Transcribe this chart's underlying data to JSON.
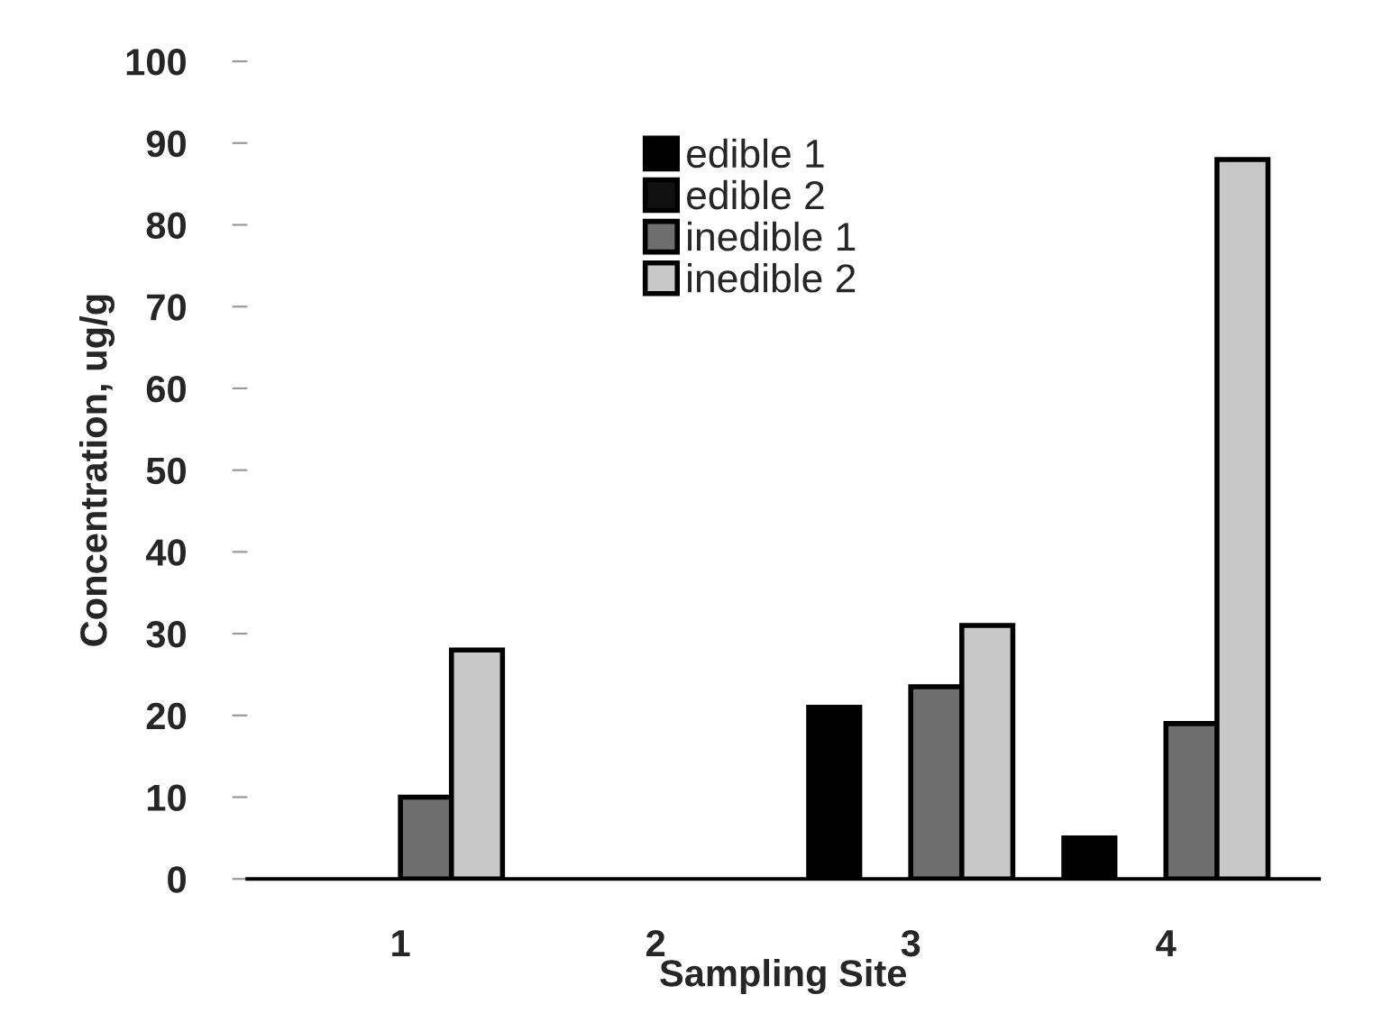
{
  "chart_data": {
    "type": "bar",
    "xlabel": "Sampling Site",
    "ylabel": "Concentration, ug/g",
    "categories": [
      "1",
      "2",
      "3",
      "4"
    ],
    "series": [
      {
        "name": "edible 1",
        "color": "#000000",
        "values": [
          null,
          null,
          21,
          5
        ]
      },
      {
        "name": "edible 2",
        "color": "#111111",
        "values": [
          null,
          null,
          null,
          null
        ]
      },
      {
        "name": "inedible 1",
        "color": "#6e6e6e",
        "values": [
          10,
          null,
          23.5,
          19
        ]
      },
      {
        "name": "inedible 2",
        "color": "#c8c8c8",
        "values": [
          28,
          null,
          31,
          88
        ]
      }
    ],
    "ylim": [
      0,
      100
    ],
    "yticks": [
      0,
      10,
      20,
      30,
      40,
      50,
      60,
      70,
      80,
      90,
      100
    ],
    "grid": false,
    "legend": "top"
  }
}
